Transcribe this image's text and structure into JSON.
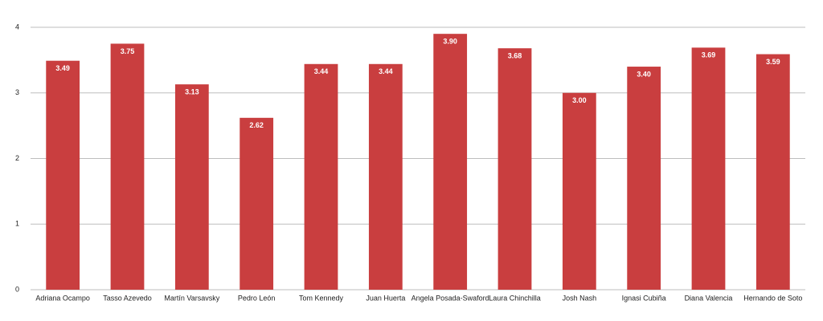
{
  "chart_data": {
    "type": "bar",
    "categories": [
      "Adriana Ocampo",
      "Tasso Azevedo",
      "Martín Varsavsky",
      "Pedro León",
      "Tom Kennedy",
      "Juan Huerta",
      "Angela Posada-Swaford",
      "Laura Chinchilla",
      "Josh Nash",
      "Ignasi Cubiña",
      "Diana Valencia",
      "Hernando de Soto"
    ],
    "values": [
      3.49,
      3.75,
      3.13,
      2.62,
      3.44,
      3.44,
      3.9,
      3.68,
      3.0,
      3.4,
      3.69,
      3.59
    ],
    "value_labels": [
      "3.49",
      "3.75",
      "3.13",
      "2.62",
      "3.44",
      "3.44",
      "3.90",
      "3.68",
      "3.00",
      "3.40",
      "3.69",
      "3.59"
    ],
    "color": "#c93e3f",
    "ylim": [
      0,
      4
    ],
    "yticks": [
      0,
      1,
      2,
      3,
      4
    ],
    "grid": true
  }
}
